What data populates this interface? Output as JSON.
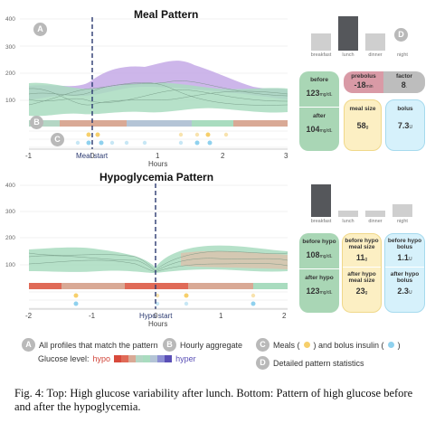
{
  "meal": {
    "title": "Meal Pattern",
    "y_ticks": [
      "400",
      "300",
      "200",
      "100"
    ],
    "x_ticks": [
      "-1",
      "0",
      "1",
      "2",
      "3"
    ],
    "x_label": "Hours",
    "cursor_label": "Meal start",
    "time_bars": [
      {
        "label": "breakfast",
        "level": 0.5
      },
      {
        "label": "lunch",
        "level": 1.0,
        "highlight": true
      },
      {
        "label": "dinner",
        "level": 0.5
      },
      {
        "label": "night",
        "level": 0.0
      }
    ],
    "cards": {
      "before_label": "before",
      "before_value": "123",
      "before_unit": "mg/dL",
      "after_label": "after",
      "after_value": "104",
      "after_unit": "mg/dL",
      "prebolus_label": "prebolus",
      "prebolus_value": "-18",
      "prebolus_unit": "min",
      "factor_label": "factor",
      "factor_value": "8",
      "factor_unit": ".",
      "meal_size_label": "meal size",
      "meal_size_value": "58",
      "meal_size_unit": "g",
      "bolus_label": "bolus",
      "bolus_value": "7.3",
      "bolus_unit": "U"
    }
  },
  "hypo": {
    "title": "Hypoglycemia Pattern",
    "y_ticks": [
      "400",
      "300",
      "200",
      "100"
    ],
    "x_ticks": [
      "-2",
      "-1",
      "0",
      "1",
      "2"
    ],
    "x_label": "Hours",
    "cursor_label": "Hypo start",
    "time_bars": [
      {
        "label": "breakfast",
        "level": 1.0,
        "highlight": true
      },
      {
        "label": "lunch",
        "level": 0.2
      },
      {
        "label": "dinner",
        "level": 0.2
      },
      {
        "label": "night",
        "level": 0.4
      }
    ],
    "cards": {
      "before_hypo_label": "before hypo",
      "before_hypo_value": "108",
      "before_hypo_unit": "mg/dL",
      "after_hypo_label": "after hypo",
      "after_hypo_value": "123",
      "after_hypo_unit": "mg/dL",
      "before_meal_label": "before hypo meal size",
      "before_meal_value": "11",
      "before_meal_unit": "g",
      "after_meal_label": "after hypo meal size",
      "after_meal_value": "23",
      "after_meal_unit": "g",
      "before_bolus_label": "before hypo bolus",
      "before_bolus_value": "1.1",
      "before_bolus_unit": "U",
      "after_bolus_label": "after hypo bolus",
      "after_bolus_value": "2.3",
      "after_bolus_unit": "U"
    }
  },
  "legend": {
    "a_text": "All profiles that match the pattern",
    "b_text": "Hourly aggregate",
    "c_text_1": "Meals (",
    "c_text_2": ") and bolus insulin (",
    "c_text_3": ")",
    "d_text": "Detailed pattern statistics",
    "glucose_label": "Glucose level:",
    "hypo_word": "hypo",
    "hyper_word": "hyper"
  },
  "badges": {
    "a": "A",
    "b": "B",
    "c": "C",
    "d": "D"
  },
  "colors": {
    "green": "#a9dcbf",
    "purple": "#c4a9e6",
    "salmon": "#d9a995",
    "red": "#e06a57",
    "blue_grey": "#b4c4d6",
    "meal_dot": "#f6cf6b",
    "bolus_dot": "#8fd1ee",
    "cursor": "#2a3970"
  },
  "caption": "Fig. 4: Top: High glucose variability after lunch. Bottom: Pattern of high glucose before and after the hypoglycemia."
}
